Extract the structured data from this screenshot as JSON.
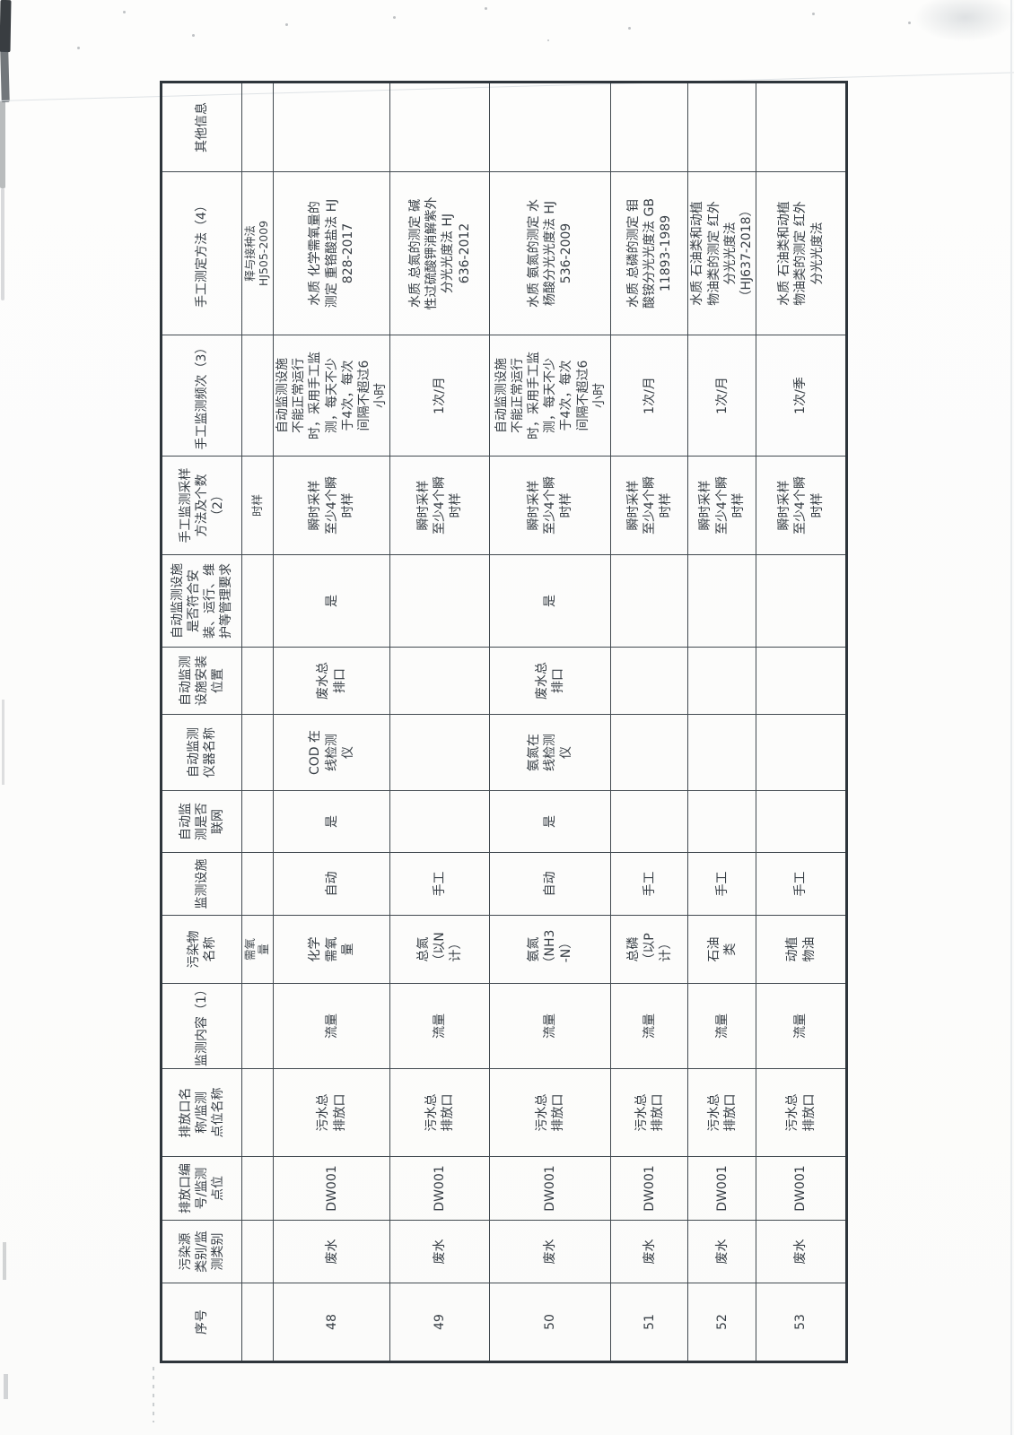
{
  "colors": {
    "paper": "#fdfdfc",
    "ink": "#373e45",
    "table_line": "#424a50"
  },
  "table": {
    "columns": [
      "序号",
      "污染源\n类别/监\n测类别",
      "排放口编\n号/监测\n点位",
      "排放口名\n称/监测\n点位名称",
      "监测内容（1）",
      "污染物\n名称",
      "监测设施",
      "自动监\n测是否\n联网",
      "自动监测\n仪器名称",
      "自动监测\n设施安装\n位置",
      "自动监测设施\n是否符合安\n装、运行、维\n护等管理要求",
      "手工监测采样\n方法及个数\n（2）",
      "手工监测频次（3）",
      "手工测定方法（4）",
      "其他信息"
    ],
    "rows": [
      {
        "partial": true,
        "cells": [
          "",
          "",
          "",
          "",
          "",
          "需氧\n量",
          "",
          "",
          "",
          "",
          "",
          "时样",
          "",
          "释与接种法\nHJ505-2009",
          ""
        ]
      },
      {
        "cells": [
          "48",
          "废水",
          "DW001",
          "污水总\n排放口",
          "流量",
          "化学\n需氧\n量",
          "自动",
          "是",
          "COD 在\n线检测\n仪",
          "废水总\n排口",
          "是",
          "瞬时采样\n至少4个瞬\n时样",
          "自动监测设施\n不能正常运行\n时，采用手工监\n测，每天不少\n于4次，每次\n间隔不超过6\n小时",
          "水质 化学需氧量的\n测定 重铬酸盐法 HJ\n828-2017",
          ""
        ]
      },
      {
        "cells": [
          "49",
          "废水",
          "DW001",
          "污水总\n排放口",
          "流量",
          "总氮\n（以N\n计）",
          "手工",
          "",
          "",
          "",
          "",
          "瞬时采样\n至少4个瞬\n时样",
          "1次/月",
          "水质 总氮的测定 碱\n性过硫酸钾消解紫外\n分光光度法 HJ\n636-2012",
          ""
        ]
      },
      {
        "cells": [
          "50",
          "废水",
          "DW001",
          "污水总\n排放口",
          "流量",
          "氨氮\n（NH3\n-N）",
          "自动",
          "是",
          "氨氮在\n线检测\n仪",
          "废水总\n排口",
          "是",
          "瞬时采样\n至少4个瞬\n时样",
          "自动监测设施\n不能正常运行\n时，采用手工监\n测，每天不少\n于4次，每次\n间隔不超过6\n小时",
          "水质 氨氮的测定 水\n杨酸分光光度法 HJ\n536-2009",
          ""
        ]
      },
      {
        "cells": [
          "51",
          "废水",
          "DW001",
          "污水总\n排放口",
          "流量",
          "总磷\n（以P\n计）",
          "手工",
          "",
          "",
          "",
          "",
          "瞬时采样\n至少4个瞬\n时样",
          "1次/月",
          "水质 总磷的测定 钼\n酸铵分光光度法 GB\n11893-1989",
          ""
        ]
      },
      {
        "cells": [
          "52",
          "废水",
          "DW001",
          "污水总\n排放口",
          "流量",
          "石油\n类",
          "手工",
          "",
          "",
          "",
          "",
          "瞬时采样\n至少4个瞬\n时样",
          "1次/月",
          "水质 石油类和动植\n物油类的测定 红外\n分光光度法\n（HJ637-2018）",
          ""
        ]
      },
      {
        "cells": [
          "53",
          "废水",
          "DW001",
          "污水总\n排放口",
          "流量",
          "动植\n物油",
          "手工",
          "",
          "",
          "",
          "",
          "瞬时采样\n至少4个瞬\n时样",
          "1次/季",
          "水质 石油类和动植\n物油类的测定 红外\n分光光度法",
          ""
        ]
      }
    ]
  }
}
